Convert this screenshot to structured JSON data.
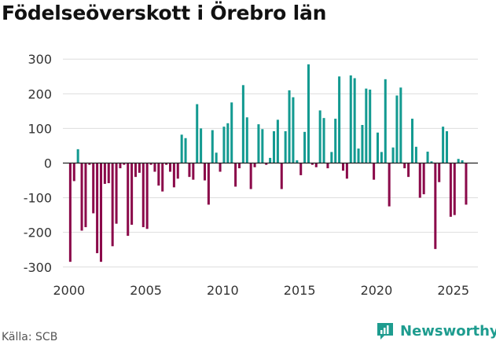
{
  "chart_data": {
    "type": "bar",
    "title": "Födelseöverskott i Örebro län",
    "xlabel": "",
    "ylabel": "",
    "ylim": [
      -330,
      330
    ],
    "yticks": [
      -300,
      -200,
      -100,
      0,
      100,
      200,
      300
    ],
    "xticks": [
      2000,
      2005,
      2010,
      2015,
      2020,
      2025
    ],
    "x_domain": [
      1999.6,
      2026.6
    ],
    "colors": {
      "positive": "#139a91",
      "negative": "#8b0a4a",
      "grid": "#dddddd",
      "zero": "#222222"
    },
    "series": [
      {
        "name": "Födelseöverskott",
        "x": [
          2000.08,
          2000.33,
          2000.58,
          2000.83,
          2001.08,
          2001.33,
          2001.58,
          2001.83,
          2002.08,
          2002.33,
          2002.58,
          2002.83,
          2003.08,
          2003.33,
          2003.58,
          2003.83,
          2004.08,
          2004.33,
          2004.58,
          2004.83,
          2005.08,
          2005.33,
          2005.58,
          2005.83,
          2006.08,
          2006.33,
          2006.58,
          2006.83,
          2007.08,
          2007.33,
          2007.58,
          2007.83,
          2008.08,
          2008.33,
          2008.58,
          2008.83,
          2009.08,
          2009.33,
          2009.58,
          2009.83,
          2010.08,
          2010.33,
          2010.58,
          2010.83,
          2011.08,
          2011.33,
          2011.58,
          2011.83,
          2012.08,
          2012.33,
          2012.58,
          2012.83,
          2013.08,
          2013.33,
          2013.58,
          2013.83,
          2014.08,
          2014.33,
          2014.58,
          2014.83,
          2015.08,
          2015.33,
          2015.58,
          2015.83,
          2016.08,
          2016.33,
          2016.58,
          2016.83,
          2017.08,
          2017.33,
          2017.58,
          2017.83,
          2018.08,
          2018.33,
          2018.58,
          2018.83,
          2019.08,
          2019.33,
          2019.58,
          2019.83,
          2020.08,
          2020.33,
          2020.58,
          2020.83,
          2021.08,
          2021.33,
          2021.58,
          2021.83,
          2022.08,
          2022.33,
          2022.58,
          2022.83,
          2023.08,
          2023.33,
          2023.58,
          2023.83,
          2024.08,
          2024.33,
          2024.58,
          2024.83,
          2025.08,
          2025.33,
          2025.58,
          2025.83
        ],
        "values": [
          -285,
          -52,
          40,
          -195,
          -185,
          -5,
          -145,
          -260,
          -285,
          -60,
          -58,
          -240,
          -175,
          -15,
          -5,
          -210,
          -178,
          -40,
          -28,
          -185,
          -190,
          -5,
          -25,
          -65,
          -82,
          -5,
          -25,
          -70,
          -45,
          82,
          72,
          -40,
          -48,
          170,
          100,
          -50,
          -120,
          95,
          30,
          -25,
          105,
          115,
          175,
          -68,
          -15,
          225,
          132,
          -75,
          -12,
          112,
          98,
          -5,
          15,
          92,
          125,
          -75,
          92,
          210,
          190,
          8,
          -35,
          90,
          285,
          -5,
          -12,
          152,
          130,
          -15,
          32,
          128,
          250,
          -22,
          -45,
          253,
          245,
          42,
          110,
          215,
          212,
          -48,
          88,
          32,
          242,
          -125,
          45,
          195,
          218,
          -15,
          -40,
          128,
          47,
          -100,
          -90,
          33,
          5,
          -248,
          -55,
          105,
          92,
          -155,
          -150,
          12,
          8,
          -120
        ]
      }
    ]
  },
  "footer": {
    "source_label": "Källa: SCB",
    "brand_name": "Newsworthy"
  },
  "icons": {
    "brand": "newsworthy-chart-logo-icon"
  }
}
